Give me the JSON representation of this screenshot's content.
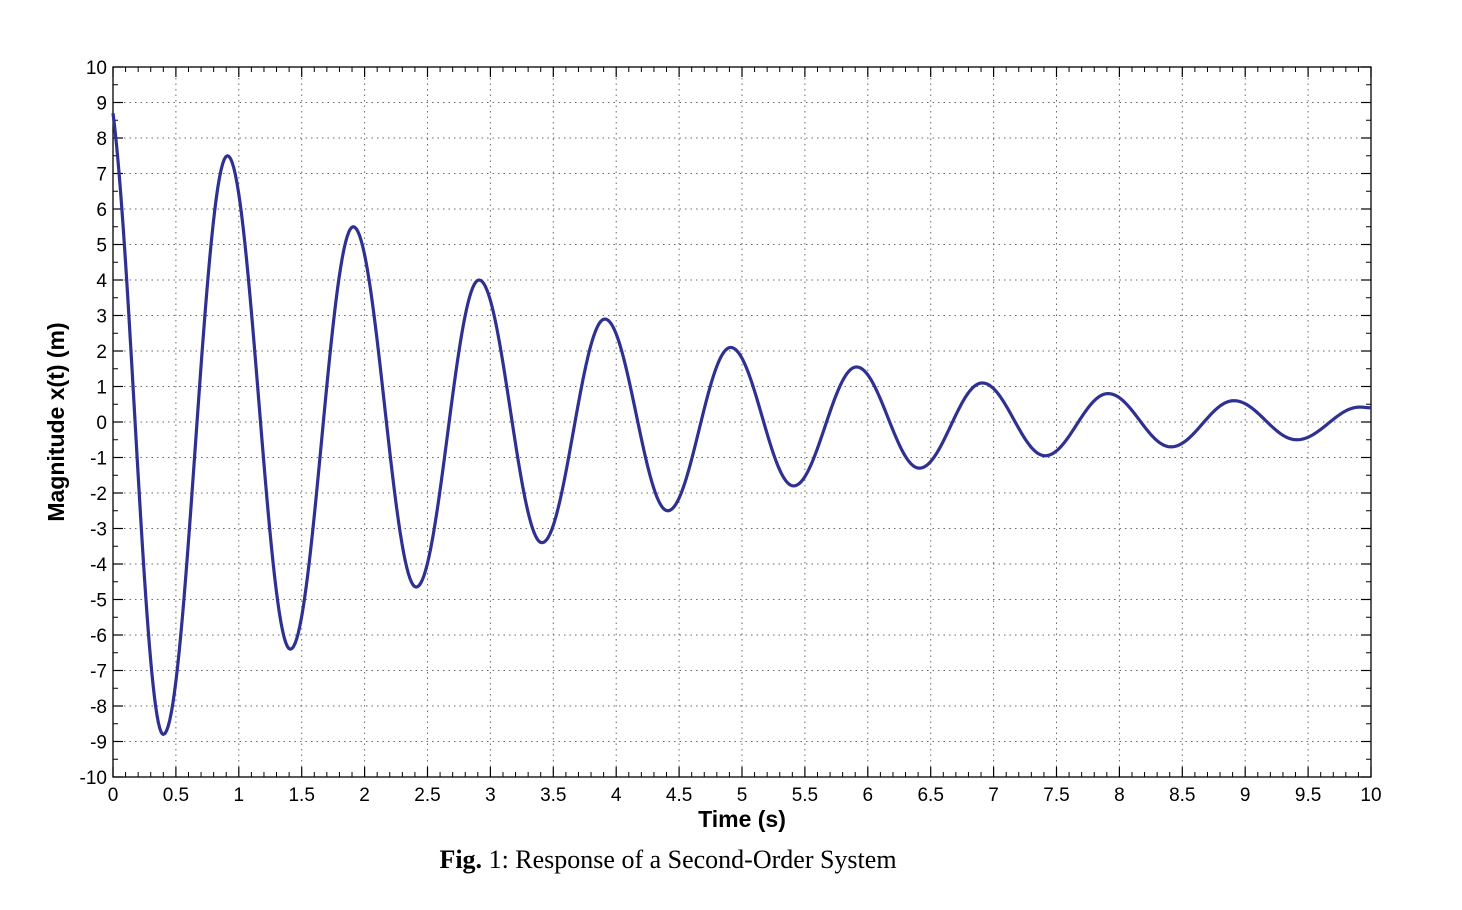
{
  "chart_data": {
    "type": "line",
    "xlabel": "Time (s)",
    "ylabel": "Magnitude x(t) (m)",
    "xlim": [
      0,
      10
    ],
    "ylim": [
      -10,
      10
    ],
    "grid": true,
    "xticks": [
      "0",
      "0.5",
      "1",
      "1.5",
      "2",
      "2.5",
      "3",
      "3.5",
      "4",
      "4.5",
      "5",
      "5.5",
      "6",
      "6.5",
      "7",
      "7.5",
      "8",
      "8.5",
      "9",
      "9.5",
      "10"
    ],
    "yticks": [
      "10",
      "9",
      "8",
      "7",
      "6",
      "5",
      "4",
      "3",
      "2",
      "1",
      "0",
      "-1",
      "-2",
      "-3",
      "-4",
      "-5",
      "-6",
      "-7",
      "-8",
      "-9",
      "-10"
    ],
    "series": [
      {
        "color": "#2e3192",
        "x": [
          0,
          0.4,
          0.91,
          1.41,
          1.91,
          2.41,
          2.91,
          3.41,
          3.91,
          4.41,
          4.91,
          5.41,
          5.91,
          6.41,
          6.91,
          7.41,
          7.91,
          8.41,
          8.91,
          9.41,
          9.91,
          10
        ],
        "y": [
          8.7,
          -8.8,
          7.5,
          -6.4,
          5.5,
          -4.65,
          4.0,
          -3.4,
          2.9,
          -2.5,
          2.1,
          -1.8,
          1.55,
          -1.3,
          1.1,
          -0.95,
          0.8,
          -0.7,
          0.6,
          -0.5,
          0.42,
          0.4
        ]
      }
    ]
  },
  "caption": {
    "label": "Fig.",
    "text": " 1: Response of a Second-Order System"
  }
}
